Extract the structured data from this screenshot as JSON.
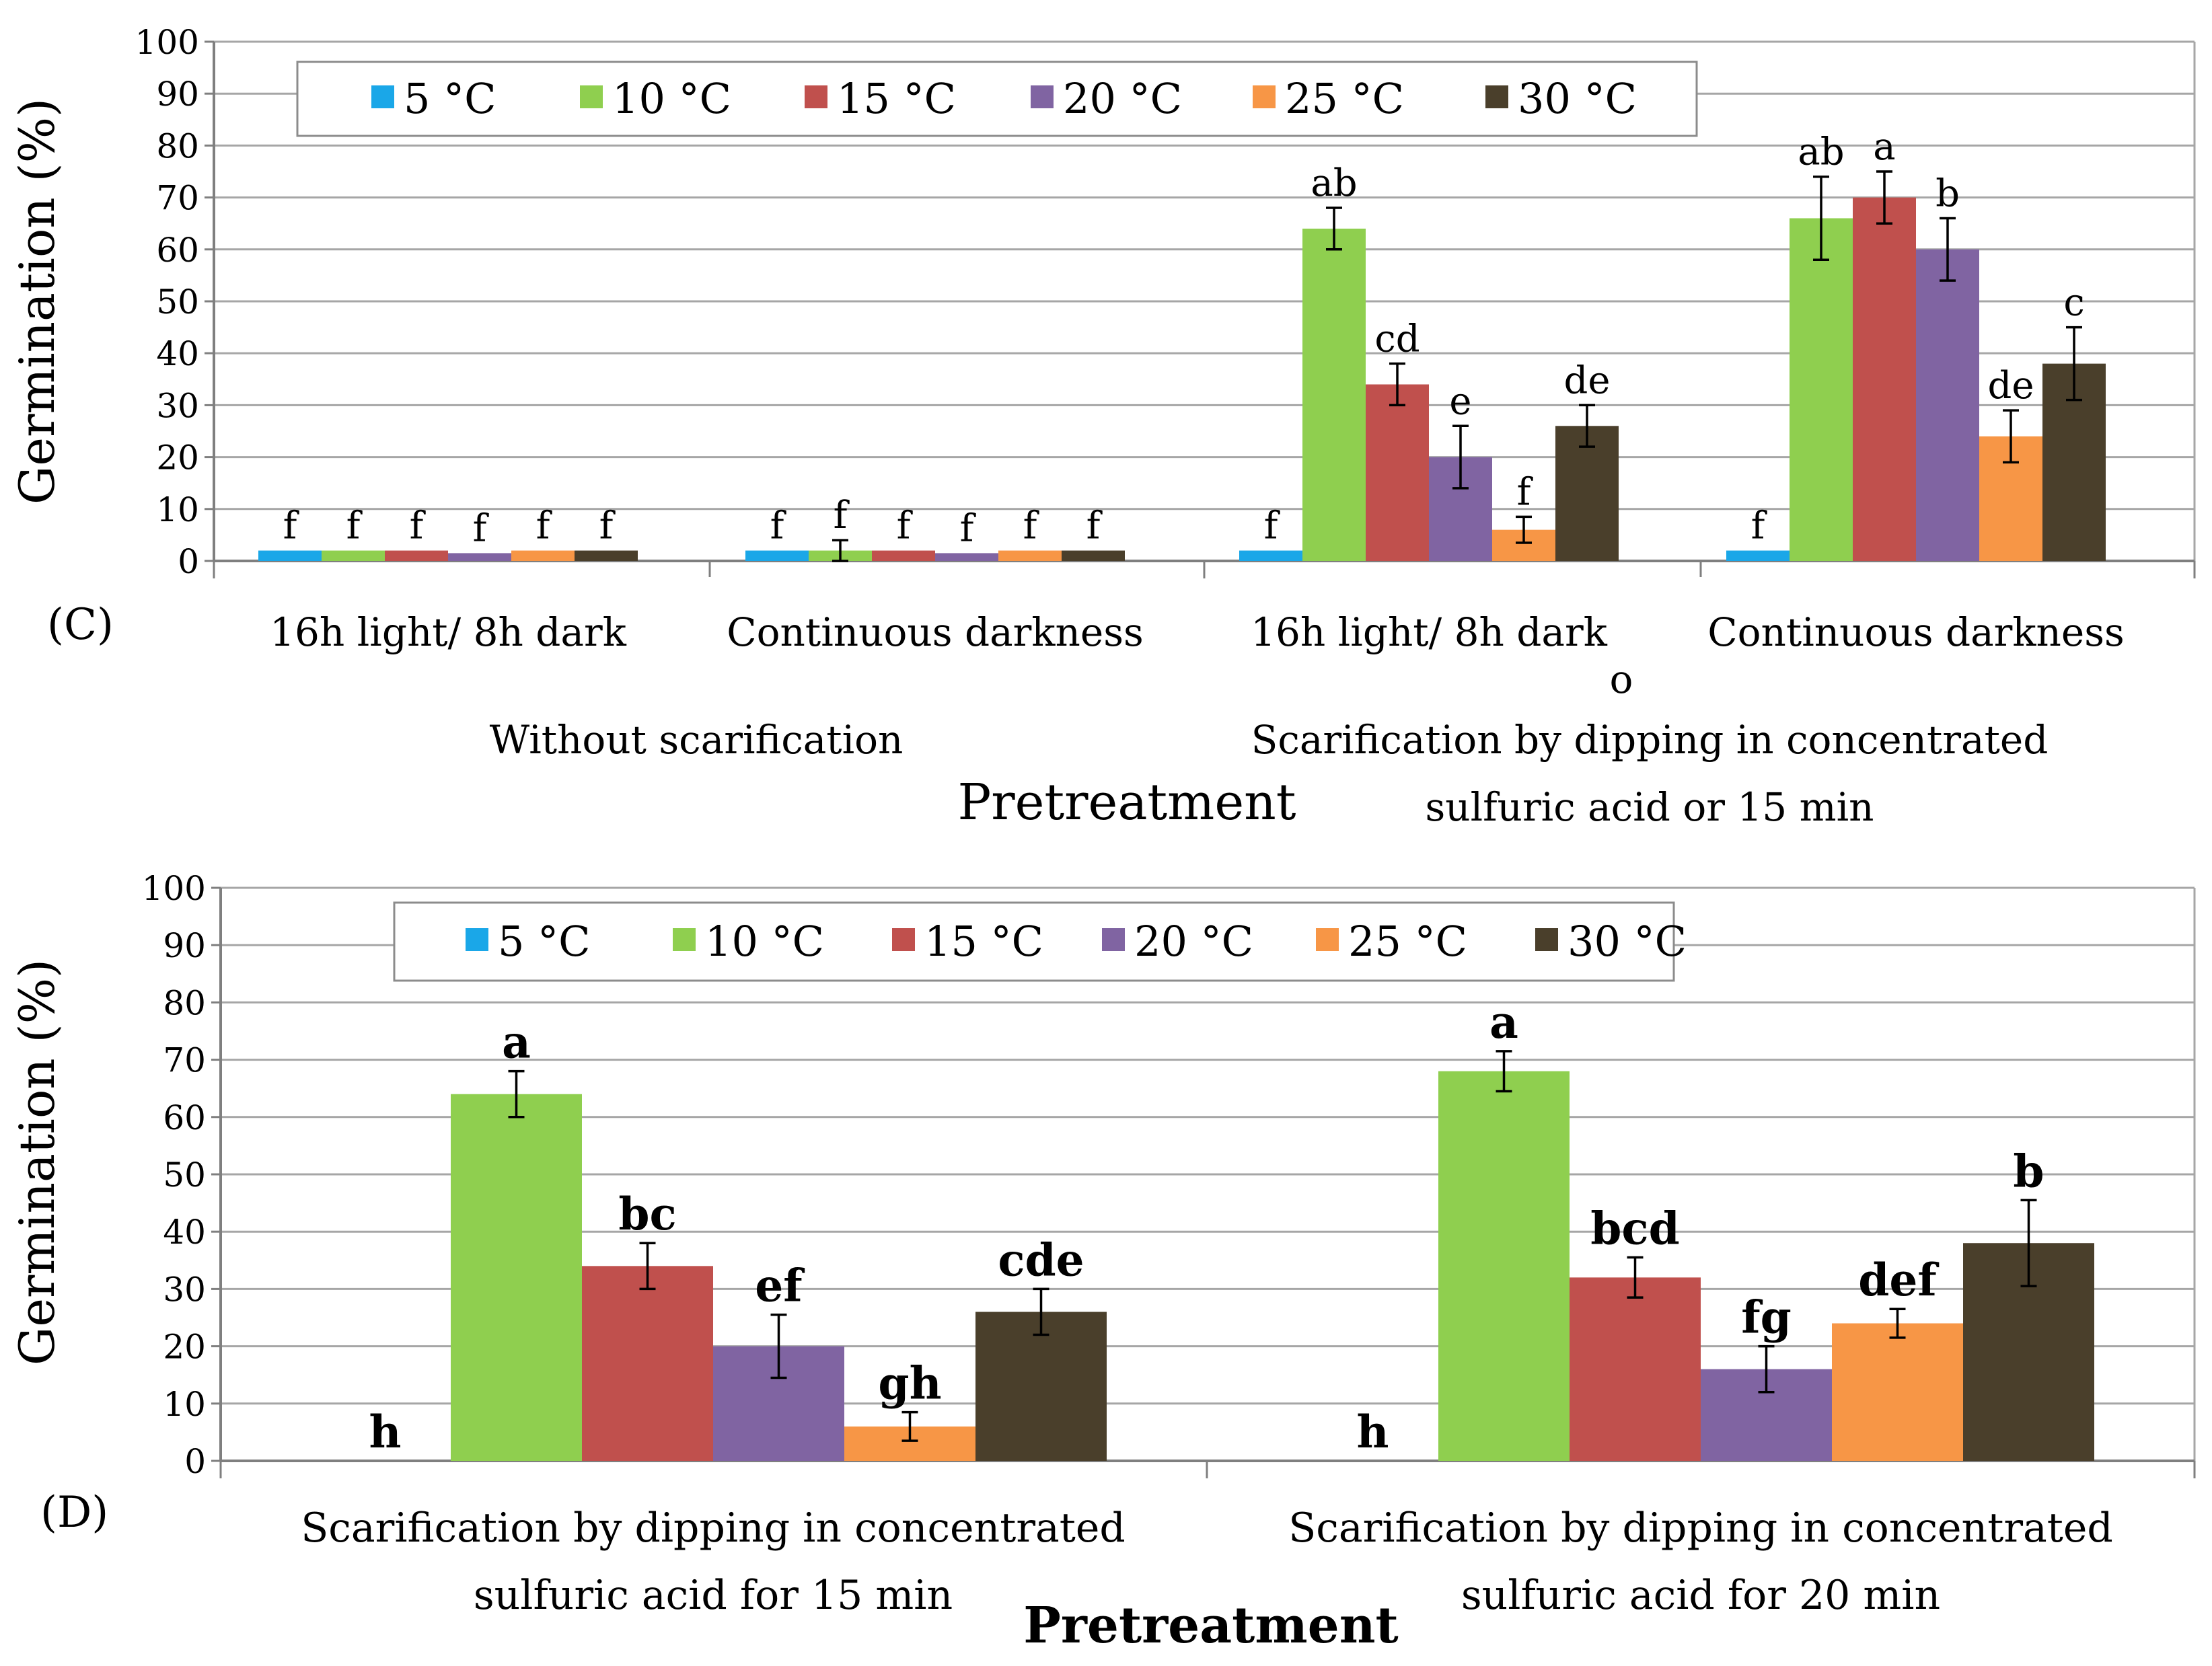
{
  "chart_data": [
    {
      "type": "bar",
      "panel_label": "(C)",
      "ylabel": "Germination (%)",
      "xlabel": "Pretreatment",
      "ylim": [
        0,
        100
      ],
      "yticks": [
        "0",
        "10",
        "20",
        "30",
        "40",
        "50",
        "60",
        "70",
        "80",
        "90",
        "100"
      ],
      "grid": true,
      "legend_position": "top",
      "categories": [
        "16h light/ 8h dark",
        "Continuous darkness",
        "16h light/ 8h dark",
        "Continuous darkness"
      ],
      "groups": [
        {
          "label": "Without scarification",
          "span": [
            0,
            1
          ]
        },
        {
          "label_lines": [
            "Scarification by dipping in concentrated",
            "sulfuric acid or 15 min"
          ],
          "span": [
            2,
            3
          ],
          "stray_mark": "o"
        }
      ],
      "series": [
        {
          "name": "5 °C",
          "color": "#1aa7e8",
          "values": [
            2,
            2,
            2,
            2
          ],
          "errors": [
            0,
            0,
            0,
            0
          ],
          "labels": [
            "f",
            "f",
            "f",
            "f"
          ]
        },
        {
          "name": "10 °C",
          "color": "#8fcf4f",
          "values": [
            2,
            2,
            64,
            66
          ],
          "errors": [
            0,
            2,
            4,
            8
          ],
          "labels": [
            "f",
            "f",
            "ab",
            "ab"
          ]
        },
        {
          "name": "15 °C",
          "color": "#c0504d",
          "values": [
            2,
            2,
            34,
            70
          ],
          "errors": [
            0,
            0,
            4,
            5
          ],
          "labels": [
            "f",
            "f",
            "cd",
            "a"
          ]
        },
        {
          "name": "20 °C",
          "color": "#8064a2",
          "values": [
            1.5,
            1.5,
            20,
            60
          ],
          "errors": [
            0,
            0,
            6,
            6
          ],
          "labels": [
            "f",
            "f",
            "e",
            "b"
          ]
        },
        {
          "name": "25 °C",
          "color": "#f79646",
          "values": [
            2,
            2,
            6,
            24
          ],
          "errors": [
            0,
            0,
            2.5,
            5
          ],
          "labels": [
            "f",
            "f",
            "f",
            "de"
          ]
        },
        {
          "name": "30 °C",
          "color": "#4a3f2b",
          "values": [
            2,
            2,
            26,
            38
          ],
          "errors": [
            0,
            0,
            4,
            7
          ],
          "labels": [
            "f",
            "f",
            "de",
            "c"
          ]
        }
      ]
    },
    {
      "type": "bar",
      "panel_label": "(D)",
      "ylabel": "Germination (%)",
      "xlabel": "Pretreatment",
      "ylim": [
        0,
        100
      ],
      "yticks": [
        "0",
        "10",
        "20",
        "30",
        "40",
        "50",
        "60",
        "70",
        "80",
        "90",
        "100"
      ],
      "grid": true,
      "legend_position": "top",
      "category_lines": [
        [
          "Scarification by dipping in concentrated",
          "sulfuric acid for 15 min"
        ],
        [
          "Scarification by dipping in concentrated",
          "sulfuric acid for 20 min"
        ]
      ],
      "series": [
        {
          "name": "5 °C",
          "color": "#1aa7e8",
          "values": [
            0,
            0
          ],
          "errors": [
            0,
            0
          ],
          "labels": [
            "h",
            "h"
          ]
        },
        {
          "name": "10 °C",
          "color": "#8fcf4f",
          "values": [
            64,
            68
          ],
          "errors": [
            4,
            3.5
          ],
          "labels": [
            "a",
            "a"
          ]
        },
        {
          "name": "15 °C",
          "color": "#c0504d",
          "values": [
            34,
            32
          ],
          "errors": [
            4,
            3.5
          ],
          "labels": [
            "bc",
            "bcd"
          ]
        },
        {
          "name": "20 °C",
          "color": "#8064a2",
          "values": [
            20,
            16
          ],
          "errors": [
            5.5,
            4
          ],
          "labels": [
            "ef",
            "fg"
          ]
        },
        {
          "name": "25 °C",
          "color": "#f79646",
          "values": [
            6,
            24
          ],
          "errors": [
            2.5,
            2.5
          ],
          "labels": [
            "gh",
            "def"
          ]
        },
        {
          "name": "30 °C",
          "color": "#4a3f2b",
          "values": [
            26,
            38
          ],
          "errors": [
            4,
            7.5
          ],
          "labels": [
            "cde",
            "b"
          ]
        }
      ]
    }
  ]
}
